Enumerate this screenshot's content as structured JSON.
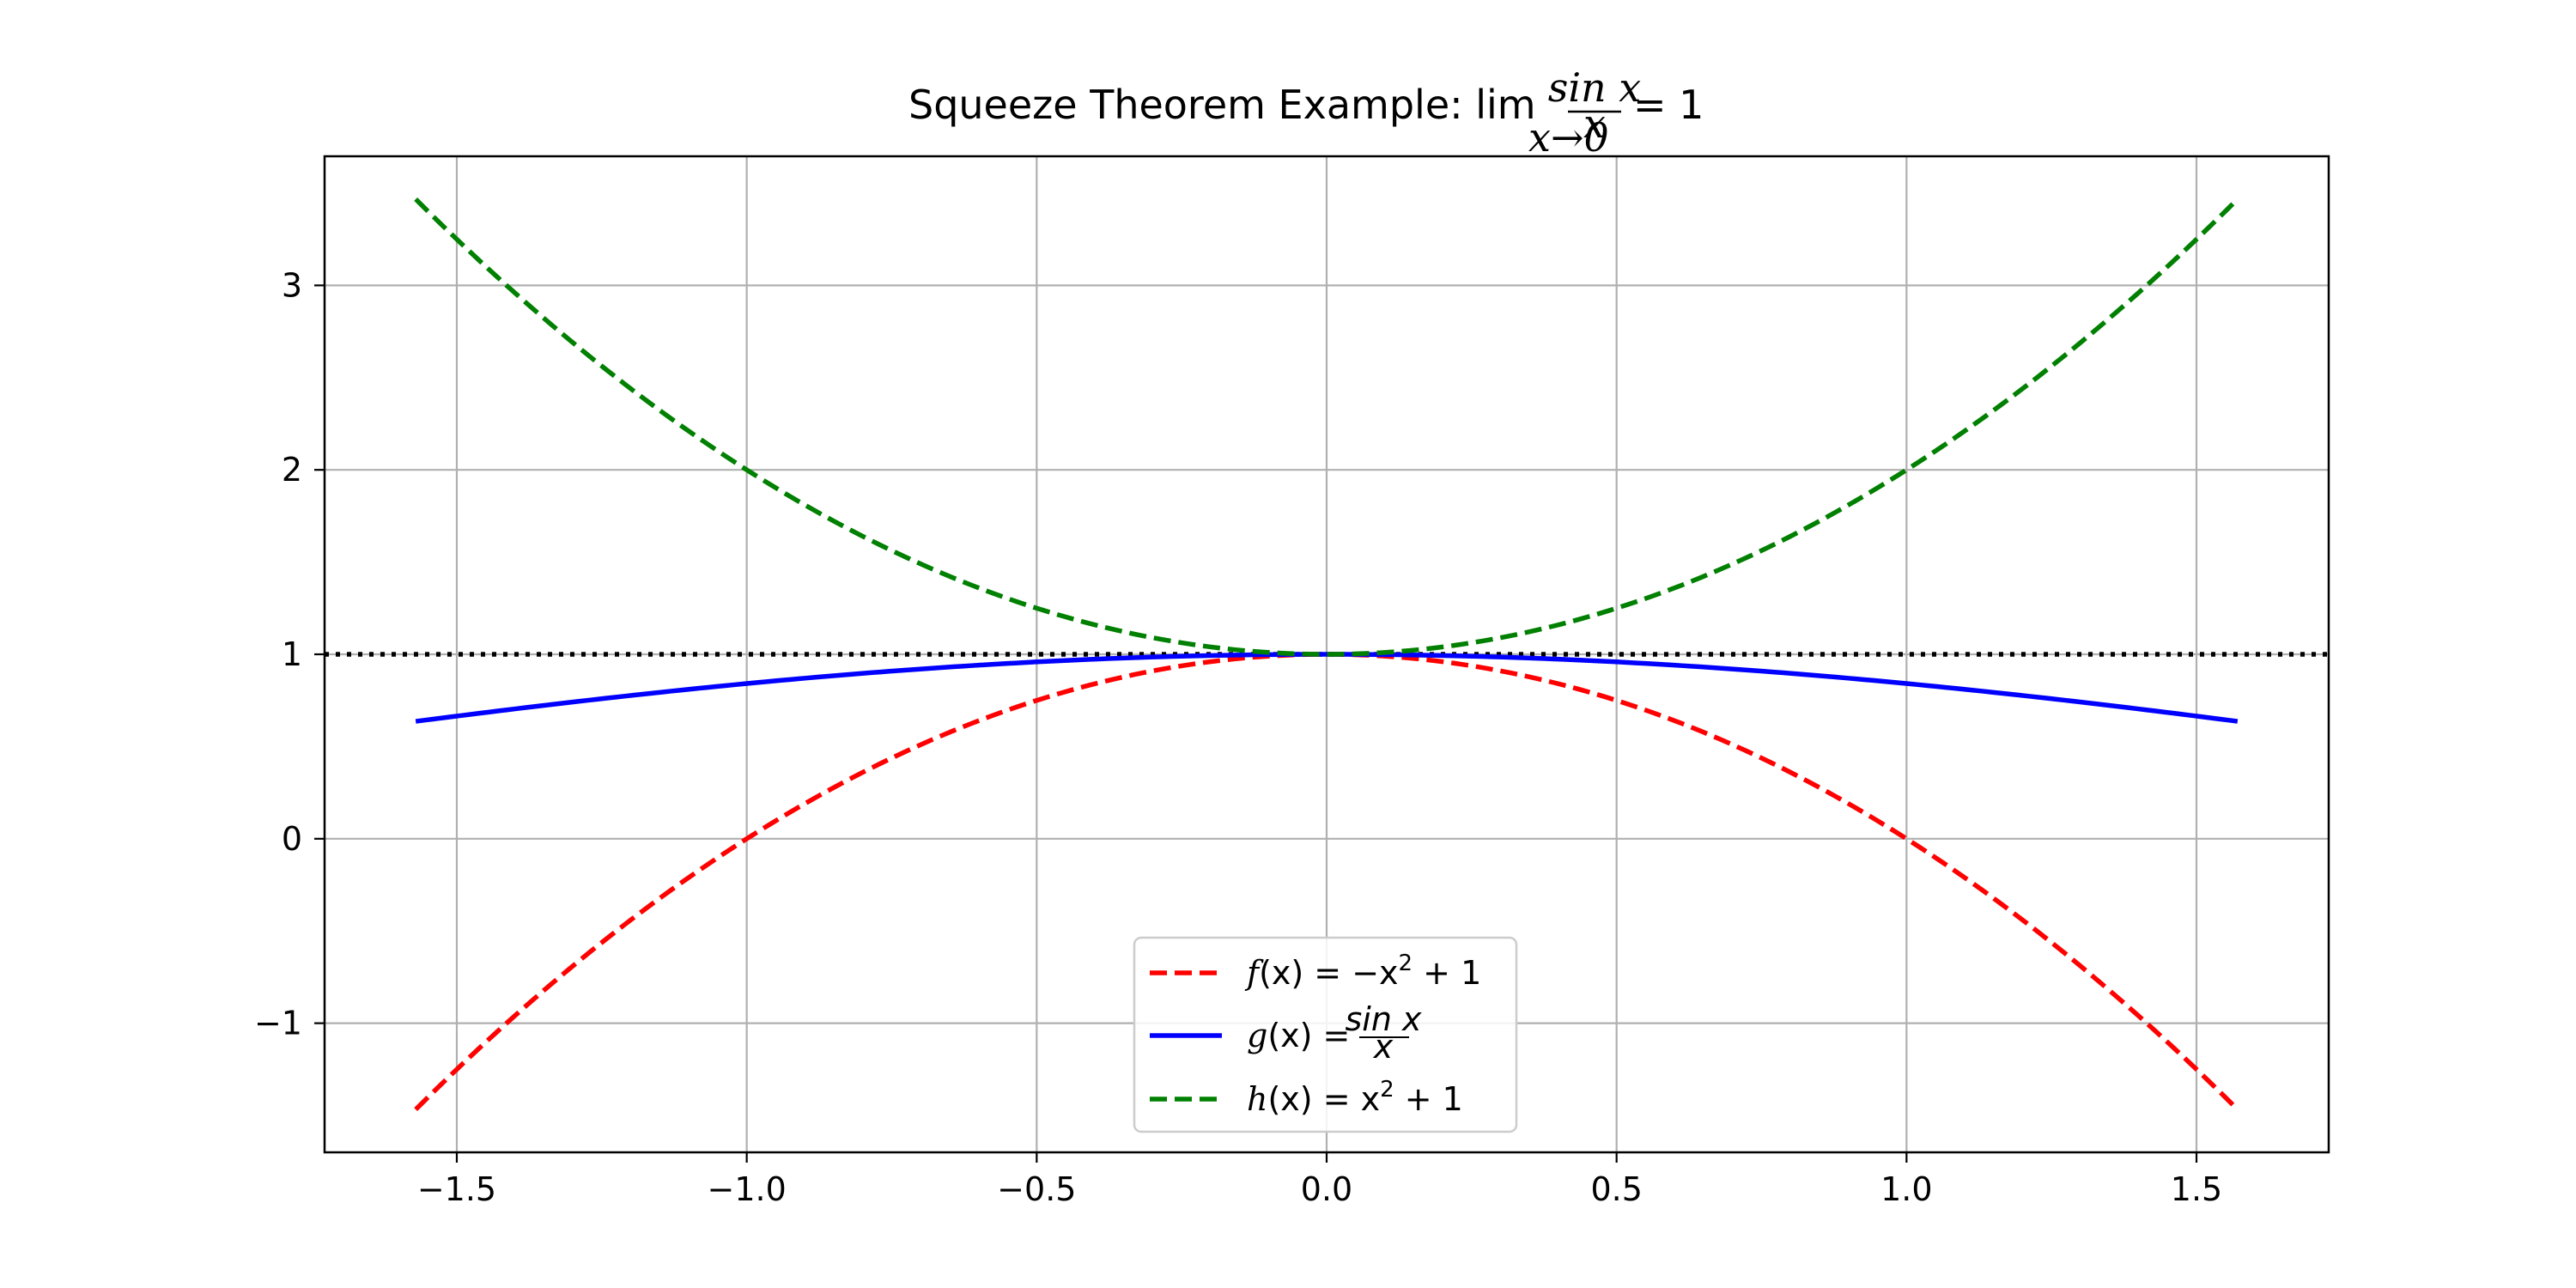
{
  "chart_data": {
    "type": "line",
    "title": {
      "text": "Squeeze Theorem Example: ",
      "lim": "lim",
      "lim_sub": "x→0",
      "frac_num": "sin x",
      "frac_den": "x",
      "equals": "= 1"
    },
    "xlabel": "",
    "ylabel": "",
    "xlim": [
      -1.728,
      1.728
    ],
    "ylim": [
      -1.7,
      3.7
    ],
    "xticks": [
      -1.5,
      -1.0,
      -0.5,
      0.0,
      0.5,
      1.0,
      1.5
    ],
    "xtick_labels": [
      "−1.5",
      "−1.0",
      "−0.5",
      "0.0",
      "0.5",
      "1.0",
      "1.5"
    ],
    "yticks": [
      -1,
      0,
      1,
      2,
      3
    ],
    "ytick_labels": [
      "−1",
      "0",
      "1",
      "2",
      "3"
    ],
    "grid": true,
    "legend_position": "lower center",
    "x_range": [
      -1.5708,
      1.5708
    ],
    "series": [
      {
        "key": "f",
        "color": "#ff0000",
        "style": "dashed",
        "function": "-x^2+1",
        "legend": {
          "prefix": "f",
          "mid": "(x) = −x",
          "sup": "2",
          "suffix": " + 1"
        }
      },
      {
        "key": "g",
        "color": "#0000ff",
        "style": "solid",
        "function": "sin(x)/x",
        "legend": {
          "prefix": "g",
          "mid": "(x) = ",
          "num": "sin x",
          "den": "x"
        }
      },
      {
        "key": "h",
        "color": "#008000",
        "style": "dashed",
        "function": "x^2+1",
        "legend": {
          "prefix": "h",
          "mid": "(x) = x",
          "sup": "2",
          "suffix": " + 1"
        }
      }
    ],
    "reference_line": {
      "y": 1,
      "color": "#000000",
      "style": "dotted"
    }
  }
}
